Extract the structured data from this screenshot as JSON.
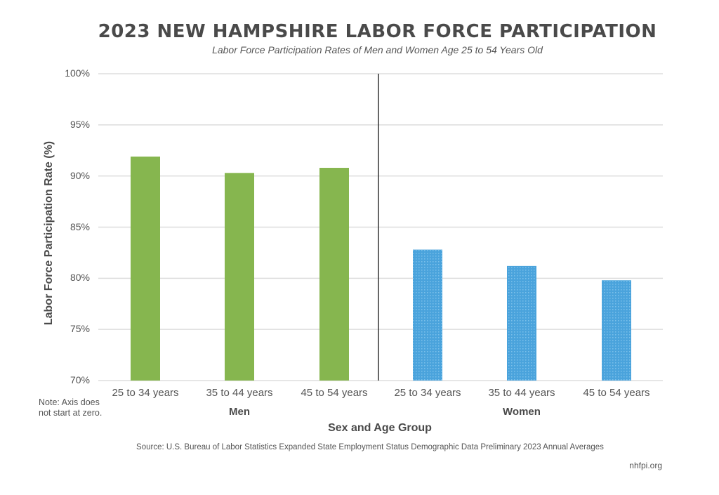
{
  "title": "2023 NEW HAMPSHIRE LABOR FORCE PARTICIPATION",
  "subtitle": "Labor Force Participation Rates of Men and Women Age 25 to 54 Years Old",
  "note": "Note: Axis does not start at zero.",
  "source": "Source: U.S. Bureau of Labor Statistics Expanded State Employment Status Demographic Data Preliminary 2023 Annual Averages",
  "site": "nhfpi.org",
  "colors": {
    "men": "#86b64f",
    "women": "#4aa3dc",
    "grid": "#dddddd",
    "divider": "#333333"
  },
  "chart_data": {
    "type": "bar",
    "title": "2023 NEW HAMPSHIRE LABOR FORCE PARTICIPATION",
    "subtitle": "Labor Force Participation Rates of Men and Women Age 25 to 54 Years Old",
    "xlabel": "Sex and Age Group",
    "ylabel": "Labor Force Participation Rate (%)",
    "ylim": [
      70,
      100
    ],
    "yticks": [
      "70%",
      "75%",
      "80%",
      "85%",
      "90%",
      "95%",
      "100%"
    ],
    "ytick_values": [
      70,
      75,
      80,
      85,
      90,
      95,
      100
    ],
    "grid": true,
    "groups": [
      {
        "name": "Men",
        "categories": [
          "25 to 34 years",
          "35 to 44 years",
          "45 to 54 years"
        ],
        "values": [
          91.9,
          90.3,
          90.8
        ]
      },
      {
        "name": "Women",
        "categories": [
          "25 to 34 years",
          "35 to 44 years",
          "45 to 54 years"
        ],
        "values": [
          82.8,
          81.2,
          79.8
        ]
      }
    ]
  }
}
